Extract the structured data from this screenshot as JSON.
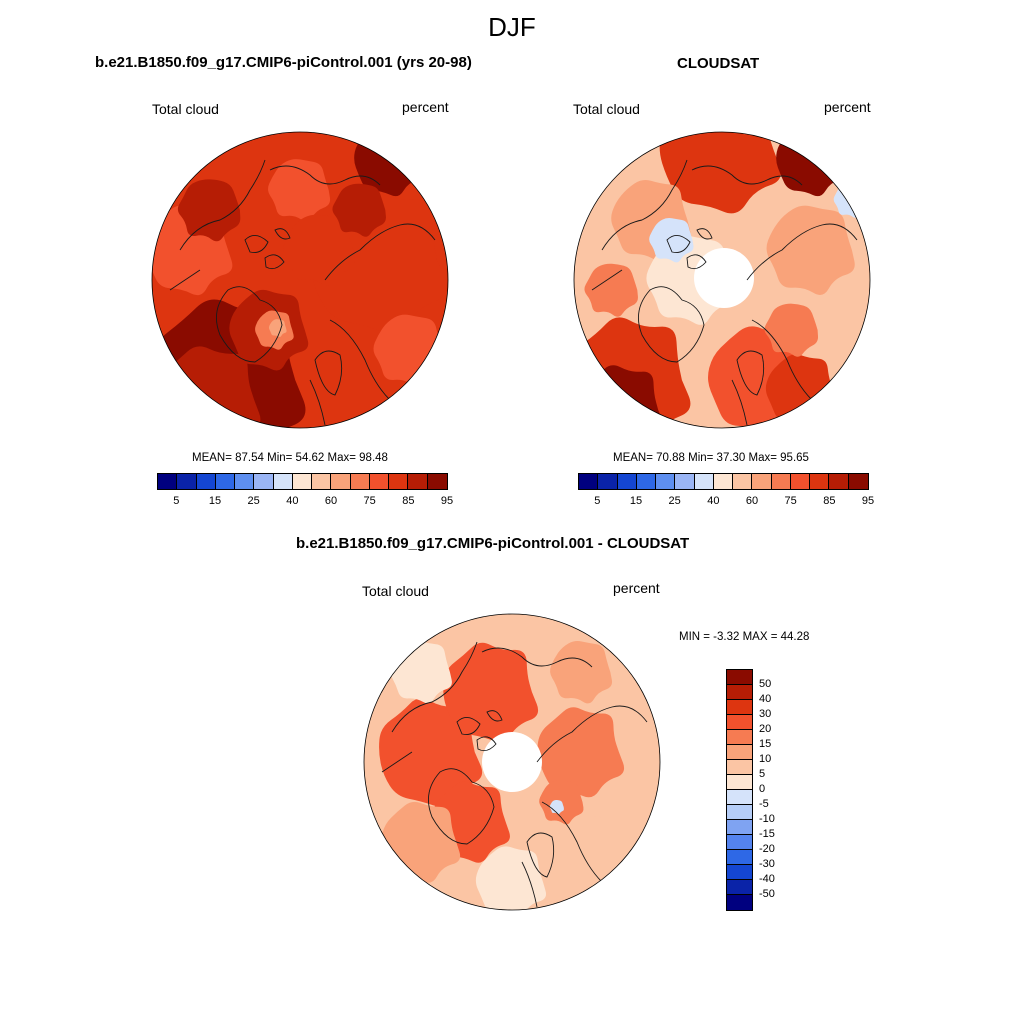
{
  "figure": {
    "title": "DJF"
  },
  "panels": {
    "model": {
      "title": "b.e21.B1850.f09_g17.CMIP6-piControl.001 (yrs 20-98)",
      "variable": "Total cloud",
      "units": "percent",
      "stats": "MEAN=  87.54  Min=  54.62  Max=  98.48",
      "mean": 87.54,
      "min": 54.62,
      "max": 98.48
    },
    "obs": {
      "title": "CLOUDSAT",
      "variable": "Total cloud",
      "units": "percent",
      "stats": "MEAN=  70.88  Min=  37.30  Max=  95.65",
      "mean": 70.88,
      "min": 37.3,
      "max": 95.65
    },
    "diff": {
      "title": "b.e21.B1850.f09_g17.CMIP6-piControl.001 - CLOUDSAT",
      "variable": "Total cloud",
      "units": "percent",
      "stats": "MIN =  -3.32 MAX =  44.28",
      "min": -3.32,
      "max": 44.28
    }
  },
  "colorbar_main": {
    "labels": [
      "5",
      "15",
      "25",
      "40",
      "60",
      "75",
      "85",
      "95"
    ],
    "colors": [
      "#00007f",
      "#0a23a8",
      "#1446d2",
      "#2e68e6",
      "#5e8ff0",
      "#9ab5f5",
      "#d5e3fa",
      "#fde6d3",
      "#fbc5a4",
      "#f9a37a",
      "#f67b52",
      "#f2512d",
      "#dd3510",
      "#b61d05",
      "#8a0b00"
    ]
  },
  "colorbar_diff": {
    "labels": [
      "50",
      "40",
      "30",
      "20",
      "15",
      "10",
      "5",
      "0",
      "-5",
      "-10",
      "-15",
      "-20",
      "-30",
      "-40",
      "-50"
    ],
    "colors": [
      "#8a0b00",
      "#b61d05",
      "#dd3510",
      "#f2512d",
      "#f67b52",
      "#f9a37a",
      "#fbc5a4",
      "#fde6d3",
      "#d5e3fa",
      "#b5cdf7",
      "#7fa3f2",
      "#5483ee",
      "#2e68e6",
      "#1446d2",
      "#0a23a8",
      "#00007f"
    ]
  },
  "map_colors": {
    "dark": "#8a0b00",
    "deep": "#b61d05",
    "red": "#dd3510",
    "orange": "#f2512d",
    "salmon": "#f67b52",
    "light": "#f9a37a",
    "peach": "#fbc5a4",
    "cream": "#fde6d3",
    "iceblue": "#d5e3fa",
    "white": "#ffffff",
    "coast": "#1a1a1a"
  }
}
